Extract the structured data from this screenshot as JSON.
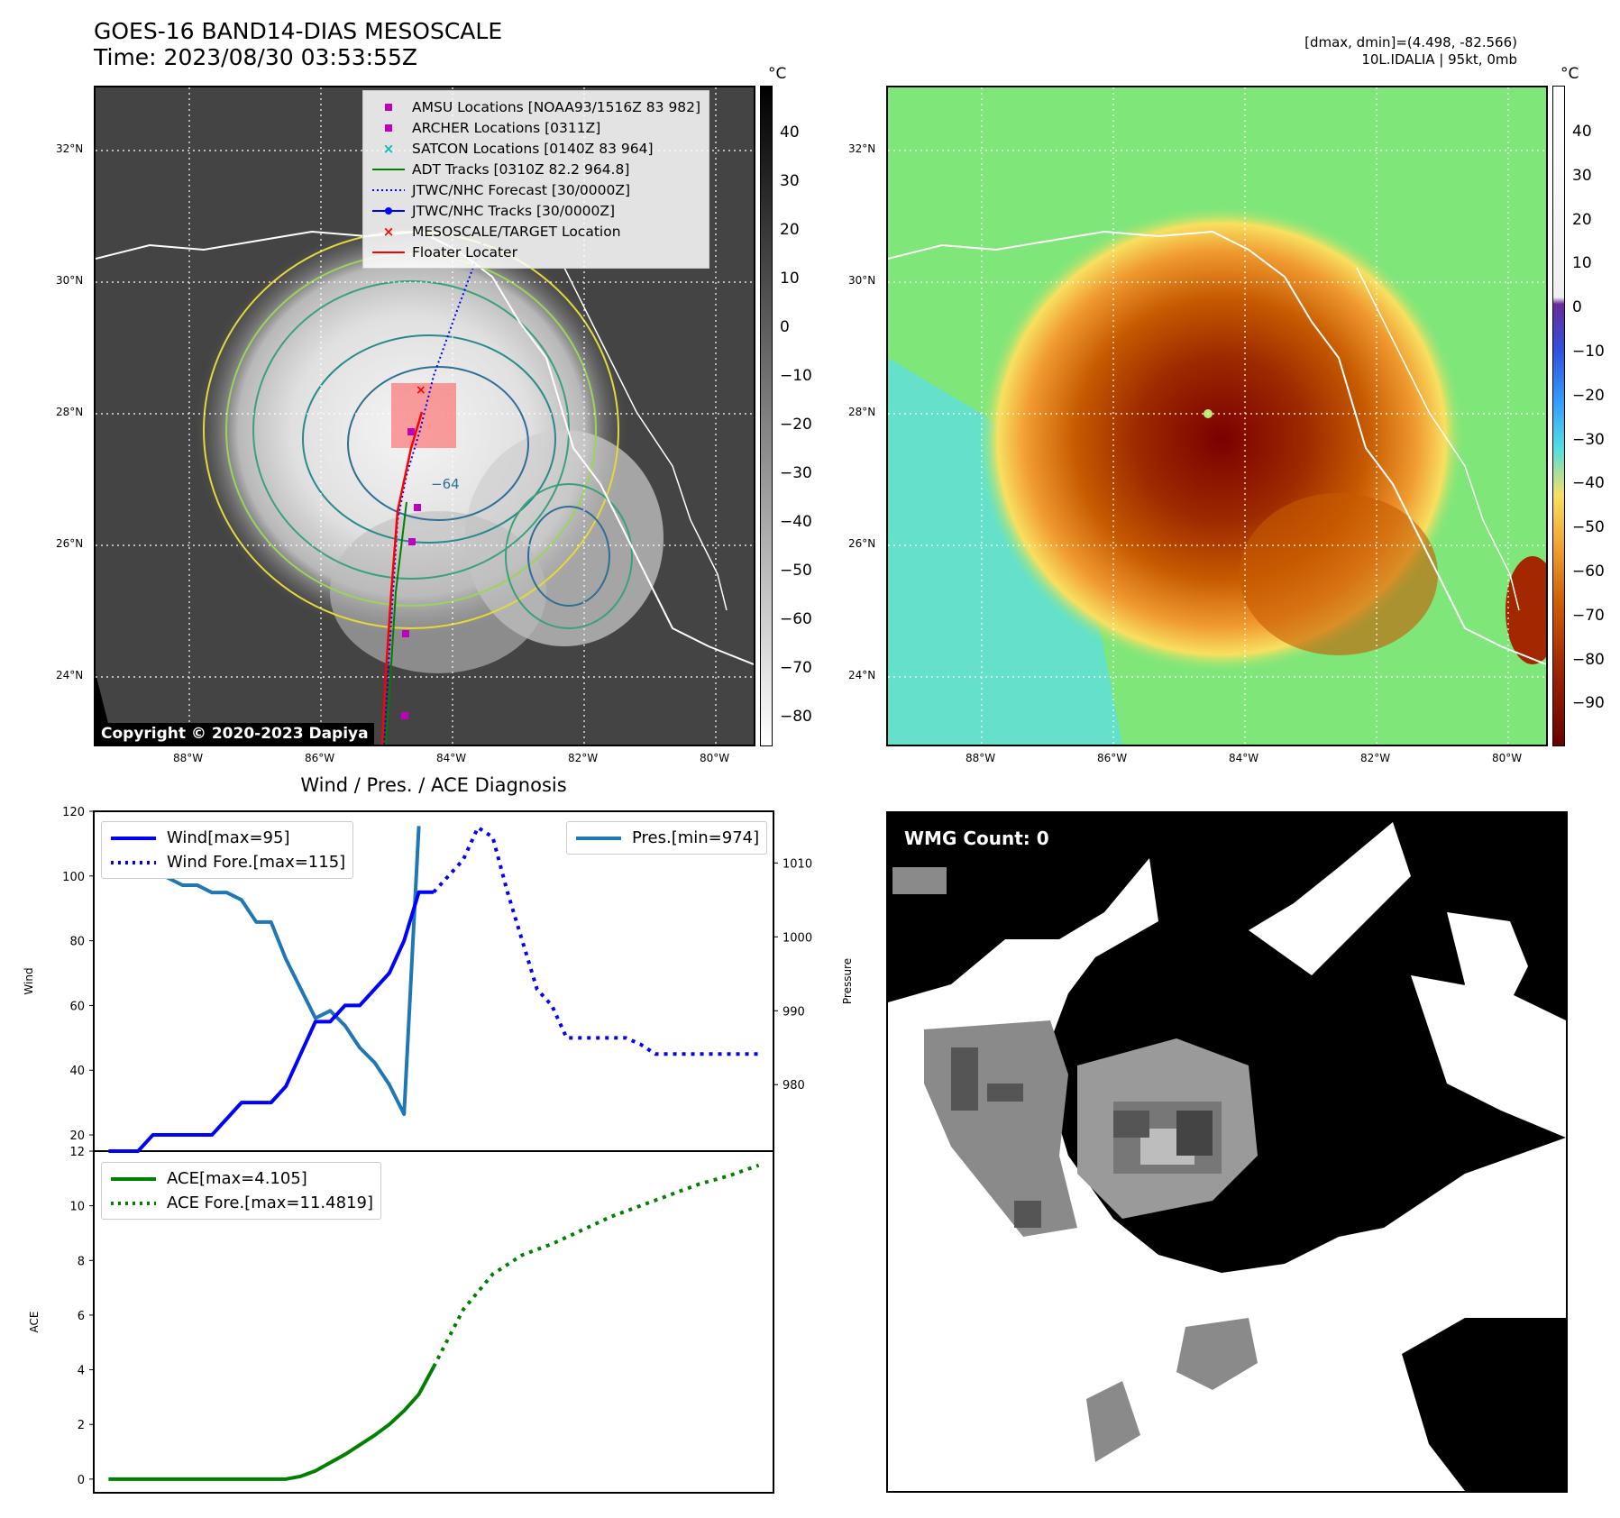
{
  "header": {
    "title_line1": "GOES-16 BAND14-DIAS MESOSCALE",
    "title_line2": "Time: 2023/08/30 03:53:55Z",
    "right_line1": "[dmax, dmin]=(4.498, -82.566)",
    "right_line2": "10L.IDALIA | 95kt, 0mb"
  },
  "map": {
    "lat_labels": [
      "32°N",
      "30°N",
      "28°N",
      "26°N",
      "24°N"
    ],
    "lon_labels": [
      "88°W",
      "86°W",
      "84°W",
      "82°W",
      "80°W"
    ],
    "copyright": "Copyright © 2020-2023 Dapiya",
    "contour_label": "−64",
    "legend": [
      {
        "label": "AMSU Locations [NOAA93/1516Z 83 982]",
        "symbol": "square",
        "color": "#bf00bf"
      },
      {
        "label": "ARCHER Locations [0311Z]",
        "symbol": "square",
        "color": "#bf00bf"
      },
      {
        "label": "SATCON Locations [0140Z 83 964]",
        "symbol": "x",
        "color": "#00bfbf"
      },
      {
        "label": "ADT Tracks [0310Z 82.2 964.8]",
        "symbol": "line",
        "color": "#008000"
      },
      {
        "label": "JTWC/NHC Forecast [30/0000Z]",
        "symbol": "dotted",
        "color": "#0000ff"
      },
      {
        "label": "JTWC/NHC Tracks [30/0000Z]",
        "symbol": "line-dot",
        "color": "#0000ff"
      },
      {
        "label": "MESOSCALE/TARGET Location",
        "symbol": "x",
        "color": "#ff0000"
      },
      {
        "label": "Floater Locater",
        "symbol": "line",
        "color": "#ff0000"
      }
    ]
  },
  "colorbar_gray": {
    "unit": "°C",
    "ticks": [
      "40",
      "30",
      "20",
      "10",
      "0",
      "−10",
      "−20",
      "−30",
      "−40",
      "−50",
      "−60",
      "−70",
      "−80"
    ]
  },
  "colorbar_color": {
    "unit": "°C",
    "ticks": [
      "40",
      "30",
      "20",
      "10",
      "0",
      "−10",
      "−20",
      "−30",
      "−40",
      "−50",
      "−60",
      "−70",
      "−80",
      "−90"
    ]
  },
  "wmg": {
    "label": "WMG Count: 0"
  },
  "chart_data": [
    {
      "type": "line",
      "title": "Wind / Pres. / ACE Diagnosis",
      "ylabel": "Wind",
      "y2label": "Pressure",
      "ylim": [
        15,
        120
      ],
      "y2lim": [
        971,
        1017
      ],
      "yticks": [
        "120",
        "100",
        "80",
        "60",
        "40",
        "20"
      ],
      "y2ticks": [
        "1010",
        "1000",
        "990",
        "980"
      ],
      "legend_left": [
        "Wind[max=95]",
        "Wind Fore.[max=115]"
      ],
      "legend_right": [
        "Pres.[min=974]"
      ],
      "series": [
        {
          "name": "Wind[max=95]",
          "color": "#0000ff",
          "style": "solid",
          "axis": "left",
          "x": [
            0,
            1,
            2,
            3,
            4,
            5,
            6,
            7,
            8,
            9,
            10,
            11,
            12,
            13,
            14,
            15,
            16,
            17,
            18,
            19,
            20,
            21,
            22
          ],
          "values": [
            15,
            15,
            15,
            20,
            20,
            20,
            20,
            20,
            25,
            30,
            30,
            30,
            35,
            45,
            55,
            55,
            60,
            60,
            65,
            70,
            80,
            95,
            95
          ]
        },
        {
          "name": "Wind Fore.[max=115]",
          "color": "#0000ff",
          "style": "dotted",
          "axis": "left",
          "x": [
            22,
            23,
            24,
            25,
            26,
            27,
            28,
            29,
            30,
            31,
            32,
            33,
            34,
            35,
            36,
            37,
            38,
            39,
            40,
            41,
            42,
            43,
            44
          ],
          "values": [
            95,
            100,
            105,
            115,
            112,
            95,
            80,
            65,
            60,
            50,
            50,
            50,
            50,
            50,
            48,
            45,
            45,
            45,
            45,
            45,
            45,
            45,
            45
          ]
        },
        {
          "name": "Pres.[min=974]",
          "color": "#1f77b4",
          "style": "solid",
          "axis": "right",
          "x": [
            1,
            2,
            3,
            4,
            5,
            6,
            7,
            8,
            9,
            10,
            11,
            12,
            13,
            14,
            15,
            16,
            17,
            18,
            19,
            20,
            21
          ],
          "values": [
            1015,
            1015,
            1009,
            1008,
            1007,
            1007,
            1006,
            1006,
            1005,
            1002,
            1002,
            997,
            993,
            989,
            990,
            988,
            985,
            983,
            980,
            976,
            1015
          ]
        }
      ]
    },
    {
      "type": "line",
      "ylabel": "ACE",
      "ylim": [
        -0.5,
        12
      ],
      "yticks": [
        "12",
        "10",
        "8",
        "6",
        "4",
        "2",
        "0"
      ],
      "legend": [
        "ACE[max=4.105]",
        "ACE Fore.[max=11.4819]"
      ],
      "series": [
        {
          "name": "ACE[max=4.105]",
          "color": "#008000",
          "style": "solid",
          "x": [
            0,
            1,
            2,
            3,
            4,
            5,
            6,
            7,
            8,
            9,
            10,
            11,
            12,
            13,
            14,
            15,
            16,
            17,
            18,
            19,
            20,
            21,
            22
          ],
          "values": [
            0,
            0,
            0,
            0,
            0,
            0,
            0,
            0,
            0,
            0,
            0,
            0,
            0,
            0.1,
            0.3,
            0.6,
            0.9,
            1.25,
            1.6,
            2.0,
            2.5,
            3.1,
            4.105
          ]
        },
        {
          "name": "ACE Fore.[max=11.4819]",
          "color": "#008000",
          "style": "dotted",
          "x": [
            22,
            24,
            26,
            28,
            30,
            32,
            34,
            36,
            38,
            40,
            42,
            44
          ],
          "values": [
            4.105,
            6.2,
            7.5,
            8.2,
            8.6,
            9.1,
            9.6,
            10.0,
            10.4,
            10.8,
            11.1,
            11.4819
          ]
        }
      ]
    }
  ]
}
